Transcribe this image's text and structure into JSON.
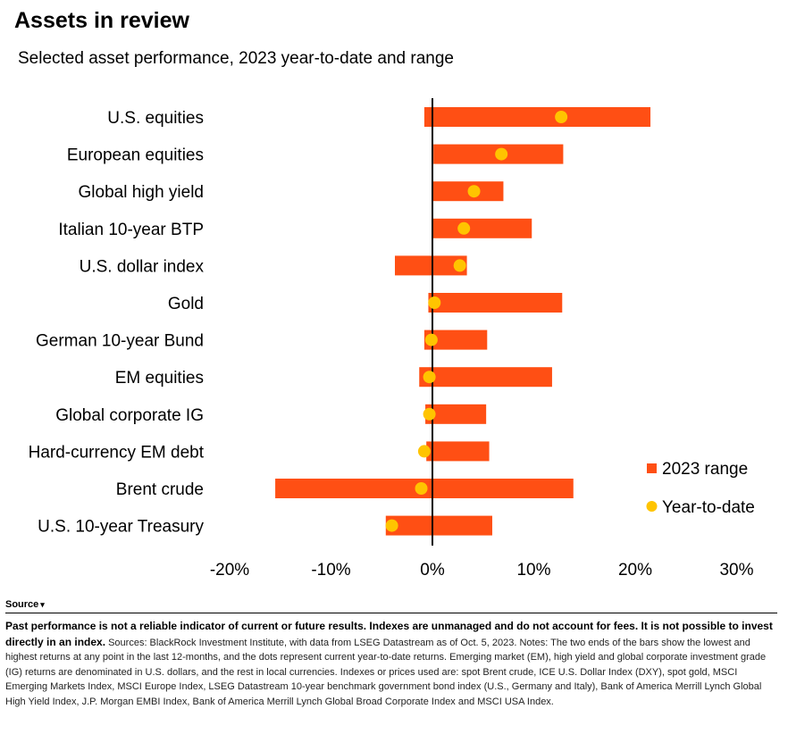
{
  "title": "Assets in review",
  "subtitle": "Selected asset performance, 2023 year-to-date and range",
  "source_label": "Source",
  "notes_bold": "Past performance is not a reliable indicator of current or future results. Indexes are unmanaged and do not account for fees. It is not possible to invest directly in an index.",
  "notes_text": "Sources: BlackRock Investment Institute, with data from LSEG Datastream as of Oct. 5, 2023. Notes: The two ends of the bars show the lowest and highest returns at any point in the last 12-months, and the dots represent current year-to-date returns. Emerging market (EM), high yield and global corporate investment grade (IG) returns are denominated in U.S. dollars, and the rest in local currencies. Indexes or prices used are: spot Brent crude, ICE U.S. Dollar Index (DXY), spot gold, MSCI Emerging Markets Index, MSCI Europe Index, LSEG Datastream 10-year benchmark government bond index (U.S., Germany and Italy), Bank of America Merrill Lynch Global High Yield Index, J.P. Morgan EMBI Index, Bank of America Merrill Lynch Global Broad Corporate Index and MSCI USA Index.",
  "colors": {
    "range": "#ff4f14",
    "ytd": "#ffc400",
    "zero_line": "#000000"
  },
  "chart_data": {
    "type": "bar",
    "orientation": "horizontal",
    "categories": [
      "U.S. equities",
      "European equities",
      "Global high yield",
      "Italian 10-year BTP",
      "U.S. dollar index",
      "Gold",
      "German 10-year Bund",
      "EM equities",
      "Global corporate IG",
      "Hard-currency EM debt",
      "Brent crude",
      "U.S. 10-year Treasury"
    ],
    "series": [
      {
        "name": "2023 range",
        "kind": "range",
        "low": [
          -0.8,
          0.1,
          0.0,
          0.0,
          -3.7,
          -0.4,
          -0.8,
          -1.3,
          -0.7,
          -0.6,
          -15.5,
          -4.6
        ],
        "high": [
          21.5,
          12.9,
          7.0,
          9.8,
          3.4,
          12.8,
          5.4,
          11.8,
          5.3,
          5.6,
          13.9,
          5.9
        ]
      },
      {
        "name": "Year-to-date",
        "kind": "dot",
        "values": [
          12.7,
          6.8,
          4.1,
          3.1,
          2.7,
          0.2,
          -0.1,
          -0.3,
          -0.3,
          -0.8,
          -1.1,
          -4.0
        ]
      }
    ],
    "xlim": [
      -20,
      30
    ],
    "x_ticks": [
      "-20%",
      "-10%",
      "0%",
      "10%",
      "20%",
      "30%"
    ],
    "tick_values": [
      -20,
      -10,
      0,
      10,
      20,
      30
    ],
    "legend_position": "right",
    "grid": false
  }
}
